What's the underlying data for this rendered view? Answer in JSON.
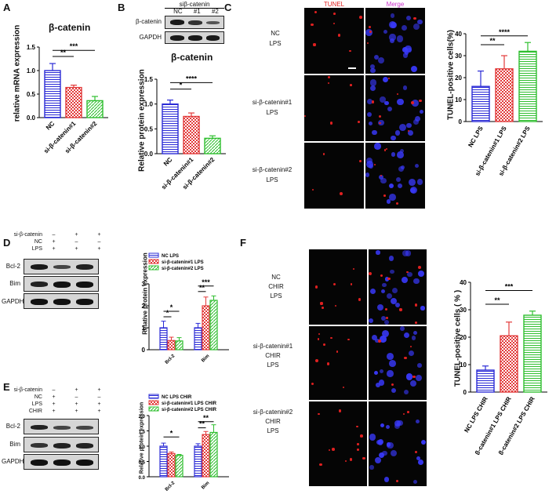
{
  "colors": {
    "nc": "#2b2bd6",
    "sc1": "#e23a3a",
    "sc2": "#2fbf2f",
    "tunel": "#e02020",
    "merge": "#cc33cc",
    "dapi": "#3a3aff"
  },
  "panelA": {
    "letter": "A",
    "title": "β-catenin",
    "ylabel": "relative mRNA expression",
    "ticks": [
      "0.0",
      "0.5",
      "1.0",
      "1.5"
    ],
    "sig": [
      "**",
      "***"
    ],
    "chart_data": {
      "type": "bar",
      "title": "β-catenin",
      "xlabel": "",
      "ylabel": "relative mRNA expression",
      "ylim": [
        0,
        1.5
      ],
      "categories": [
        "NC",
        "si-β-catenin#1",
        "si-β-catenin#2"
      ],
      "values": [
        1.0,
        0.64,
        0.36
      ],
      "errors": [
        0.15,
        0.05,
        0.09
      ]
    }
  },
  "panelB": {
    "letter": "B",
    "header": "siβ-catenin",
    "lanes": [
      "NC",
      "#1",
      "#2"
    ],
    "rows": [
      "β-catenin",
      "GAPDH"
    ],
    "title": "β-catenin",
    "ylabel": "Relative protein expression",
    "ticks": [
      "0.0",
      "0.5",
      "1.0",
      "1.5"
    ],
    "sig": [
      "*",
      "****"
    ],
    "chart_data": {
      "type": "bar",
      "title": "β-catenin",
      "xlabel": "",
      "ylabel": "Relative protein expression",
      "ylim": [
        0,
        1.5
      ],
      "categories": [
        "NC",
        "si-β-catenin#1",
        "si-β-catenin#2"
      ],
      "values": [
        1.0,
        0.75,
        0.31
      ],
      "errors": [
        0.08,
        0.07,
        0.05
      ]
    }
  },
  "panelC": {
    "letter": "C",
    "col_headers": [
      "TUNEL",
      "Merge"
    ],
    "row_labels": [
      [
        "NC",
        "LPS"
      ],
      [
        "si-β-catenin#1",
        "LPS"
      ],
      [
        "si-β-catenin#2",
        "LPS"
      ]
    ],
    "ylabel": "TUNEL-positive cells(%)",
    "ticks": [
      "0",
      "10",
      "20",
      "30",
      "40"
    ],
    "sig": [
      "**",
      "****"
    ],
    "chart_data": {
      "type": "bar",
      "xlabel": "",
      "ylabel": "TUNEL-positive cells(%)",
      "ylim": [
        0,
        40
      ],
      "categories": [
        "NC LPS",
        "si-β-catenin#1 LPS",
        "si-β-catenin#2 LPS"
      ],
      "values": [
        16,
        24,
        32
      ],
      "errors": [
        7,
        6,
        4
      ]
    }
  },
  "panelD": {
    "letter": "D",
    "conditions": [
      {
        "name": "si-β-catenin",
        "marks": [
          "–",
          "+",
          "+"
        ]
      },
      {
        "name": "NC",
        "marks": [
          "+",
          "–",
          "–"
        ]
      },
      {
        "name": "LPS",
        "marks": [
          "+",
          "+",
          "+"
        ]
      }
    ],
    "rows": [
      "Bcl-2",
      "Bim",
      "GAPDH"
    ],
    "ylabel": "Relative protein expression",
    "ticks": [
      "0",
      "1",
      "2",
      "3"
    ],
    "sig": [
      "*",
      "*",
      "**",
      "***"
    ],
    "chart_data": {
      "type": "bar",
      "xlabel": "",
      "ylabel": "Relative protein expression",
      "ylim": [
        0,
        3
      ],
      "categories": [
        "Bcl-2",
        "Bim"
      ],
      "series": [
        {
          "name": "NC LPS",
          "values": [
            1.0,
            1.0
          ],
          "errors": [
            0.3,
            0.2
          ]
        },
        {
          "name": "si-β-catenin#1 LPS",
          "values": [
            0.42,
            2.0
          ],
          "errors": [
            0.15,
            0.4
          ]
        },
        {
          "name": "si-β-catenin#2 LPS",
          "values": [
            0.4,
            2.25
          ],
          "errors": [
            0.15,
            0.2
          ]
        }
      ]
    }
  },
  "panelE": {
    "letter": "E",
    "conditions": [
      {
        "name": "si-β-catenin",
        "marks": [
          "–",
          "+",
          "+"
        ]
      },
      {
        "name": "NC",
        "marks": [
          "+",
          "–",
          "–"
        ]
      },
      {
        "name": "LPS",
        "marks": [
          "+",
          "+",
          "+"
        ]
      },
      {
        "name": "CHIR",
        "marks": [
          "+",
          "+",
          "+"
        ]
      }
    ],
    "rows": [
      "Bcl-2",
      "Bim",
      "GAPDH"
    ],
    "ylabel": "Relative protein expression",
    "ticks": [
      "0.0",
      "0.5",
      "1.0",
      "1.5",
      "2.0"
    ],
    "sig": [
      "*",
      "**",
      "**"
    ],
    "chart_data": {
      "type": "bar",
      "xlabel": "",
      "ylabel": "Relative protein expression",
      "ylim": [
        0,
        2.0
      ],
      "categories": [
        "Bcl-2",
        "Bim"
      ],
      "series": [
        {
          "name": "NC LPS CHIR",
          "values": [
            1.0,
            1.0
          ],
          "errors": [
            0.1,
            0.08
          ]
        },
        {
          "name": "si-β-catenin#1 LPS CHIR",
          "values": [
            0.76,
            1.38
          ],
          "errors": [
            0.05,
            0.1
          ]
        },
        {
          "name": "si-β-catenin#2 LPS CHIR",
          "values": [
            0.7,
            1.45
          ],
          "errors": [
            0.03,
            0.25
          ]
        }
      ]
    }
  },
  "panelF": {
    "letter": "F",
    "row_labels": [
      [
        "NC",
        "CHIR",
        "LPS"
      ],
      [
        "si-β-catenin#1",
        "CHIR",
        "LPS"
      ],
      [
        "si-β-catenin#2",
        "CHIR",
        "LPS"
      ]
    ],
    "ylabel": "TUNEL-positive cells ( % )",
    "ticks": [
      "0",
      "10",
      "20",
      "30",
      "40"
    ],
    "sig": [
      "**",
      "***"
    ],
    "chart_data": {
      "type": "bar",
      "xlabel": "",
      "ylabel": "TUNEL-positive cells ( % )",
      "ylim": [
        0,
        40
      ],
      "categories": [
        "NC LPS CHIR",
        "si-β-catenin#1 LPS CHIR",
        "si-β-catenin#2 LPS CHIR"
      ],
      "values": [
        8,
        20.5,
        28
      ],
      "errors": [
        1.5,
        5,
        1.5
      ]
    }
  }
}
